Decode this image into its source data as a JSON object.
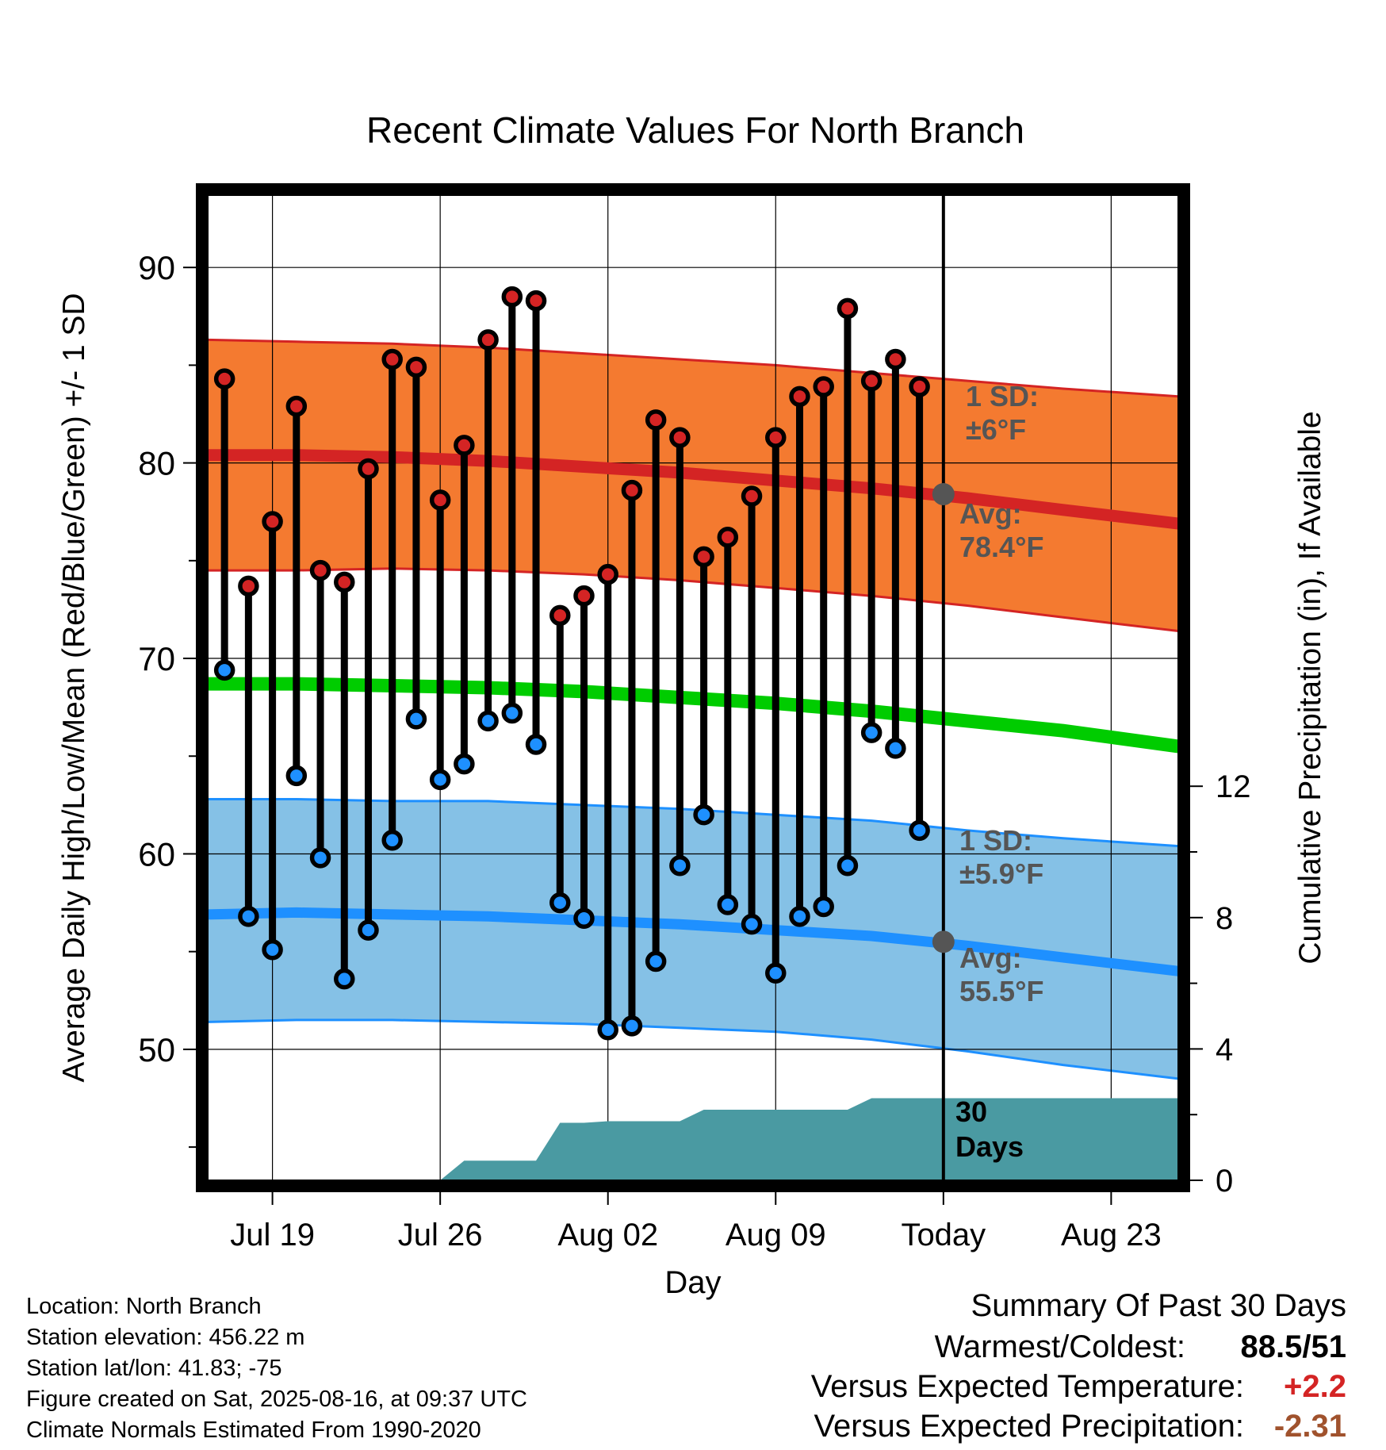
{
  "chart_data": {
    "type": "line",
    "title": "Recent Climate Values For North Branch",
    "xlabel": "Day",
    "ylabel": "Average Daily High/Low/Mean (Red/Blue/Green) +/- 1 SD",
    "ylabel_right": "Cumulative Precipitation (in), If Available",
    "x_ticks": [
      {
        "label": "Jul 19",
        "x": 3
      },
      {
        "label": "Jul 26",
        "x": 10
      },
      {
        "label": "Aug 02",
        "x": 17
      },
      {
        "label": "Aug 09",
        "x": 24
      },
      {
        "label": "Today",
        "x": 31
      },
      {
        "label": "Aug 23",
        "x": 38
      }
    ],
    "xlim": [
      0.3,
      40.8
    ],
    "ylim": [
      43.3,
      93.7
    ],
    "y_ticks": [
      50,
      60,
      70,
      80,
      90
    ],
    "y2lim": [
      0,
      30.0
    ],
    "y2_ticks": [
      0,
      4,
      8,
      12
    ],
    "grid": true,
    "today_x": 31,
    "days": [
      1,
      2,
      3,
      4,
      5,
      6,
      7,
      8,
      9,
      10,
      11,
      12,
      13,
      14,
      15,
      16,
      17,
      18,
      19,
      20,
      21,
      22,
      23,
      24,
      25,
      26,
      27,
      28,
      29,
      30
    ],
    "highs": [
      84.3,
      73.7,
      77.0,
      82.9,
      74.5,
      73.9,
      79.7,
      85.3,
      84.9,
      78.1,
      80.9,
      86.3,
      88.5,
      88.3,
      72.2,
      73.2,
      74.3,
      78.6,
      82.2,
      81.3,
      75.2,
      76.2,
      78.3,
      81.3,
      83.4,
      83.9,
      87.9,
      84.2,
      85.3,
      83.9
    ],
    "lows": [
      69.4,
      56.8,
      55.1,
      64.0,
      59.8,
      53.6,
      56.1,
      60.7,
      66.9,
      63.8,
      64.6,
      66.8,
      67.2,
      65.6,
      57.5,
      56.7,
      51.0,
      51.2,
      54.5,
      59.4,
      62.0,
      57.4,
      56.4,
      53.9,
      56.8,
      57.3,
      59.4,
      66.2,
      65.4,
      61.2
    ],
    "normal_high": {
      "x": [
        0.3,
        4,
        8,
        12,
        16,
        20,
        24,
        28,
        32,
        36,
        40.8
      ],
      "mean": [
        80.4,
        80.4,
        80.3,
        80.1,
        79.8,
        79.5,
        79.1,
        78.7,
        78.2,
        77.6,
        76.9
      ],
      "upper": [
        86.3,
        86.2,
        86.1,
        85.9,
        85.6,
        85.3,
        85.0,
        84.6,
        84.2,
        83.8,
        83.4
      ],
      "lower": [
        74.5,
        74.5,
        74.6,
        74.5,
        74.3,
        74.0,
        73.6,
        73.2,
        72.7,
        72.1,
        71.4
      ]
    },
    "normal_mean": {
      "x": [
        0.3,
        4,
        8,
        12,
        16,
        20,
        24,
        28,
        32,
        36,
        40.8
      ],
      "mean": [
        68.7,
        68.7,
        68.6,
        68.5,
        68.3,
        68.0,
        67.7,
        67.3,
        66.8,
        66.3,
        65.5
      ]
    },
    "normal_low": {
      "x": [
        0.3,
        4,
        8,
        12,
        16,
        20,
        24,
        28,
        32,
        36,
        40.8
      ],
      "mean": [
        56.9,
        57.0,
        56.9,
        56.8,
        56.6,
        56.4,
        56.1,
        55.8,
        55.3,
        54.7,
        54.0
      ],
      "upper": [
        62.8,
        62.8,
        62.7,
        62.7,
        62.5,
        62.3,
        62.0,
        61.7,
        61.2,
        60.8,
        60.4
      ],
      "lower": [
        51.4,
        51.5,
        51.5,
        51.4,
        51.3,
        51.1,
        50.9,
        50.5,
        49.9,
        49.2,
        48.5
      ]
    },
    "precip_cumulative": {
      "x": [
        10,
        11,
        14,
        15,
        16,
        17,
        18,
        20,
        21,
        24,
        27,
        28,
        31,
        40.8
      ],
      "values": [
        0,
        0.6,
        0.6,
        1.75,
        1.75,
        1.8,
        1.8,
        1.8,
        2.15,
        2.15,
        2.15,
        2.5,
        2.5,
        2.5
      ]
    },
    "annotations": {
      "high_sd": [
        "1 SD:",
        "±6°F"
      ],
      "high_avg": [
        "Avg:",
        "78.4°F"
      ],
      "low_sd": [
        "1 SD:",
        "±5.9°F"
      ],
      "low_avg": [
        "Avg:",
        "55.5°F"
      ],
      "precip_days": [
        "30",
        "Days"
      ]
    },
    "today_normal_high": 78.4,
    "today_normal_low": 55.5,
    "colors": {
      "high_band": "#f47a30",
      "high_line": "#d42424",
      "high_dot": "#d42424",
      "mean_line": "#00cc00",
      "low_band": "#85c1e6",
      "low_line": "#1e90ff",
      "low_dot": "#1e90ff",
      "precip": "#4a9aa2",
      "annotation": "#555555"
    }
  },
  "footer": {
    "location": "Location: North Branch",
    "elevation": "Station elevation: 456.22 m",
    "latlon": "Station lat/lon: 41.83; -75",
    "created": "Figure created on Sat, 2025-08-16, at 09:37 UTC",
    "normals": "Climate Normals Estimated From 1990-2020"
  },
  "summary": {
    "heading": "Summary Of Past 30 Days",
    "warmest_label": "Warmest/Coldest:",
    "warmest_value": "88.5/51",
    "temp_label": "Versus Expected Temperature:",
    "temp_value": "+2.2",
    "temp_color": "#d42424",
    "precip_label": "Versus Expected Precipitation:",
    "precip_value": "-2.31",
    "precip_color": "#a0522d"
  }
}
